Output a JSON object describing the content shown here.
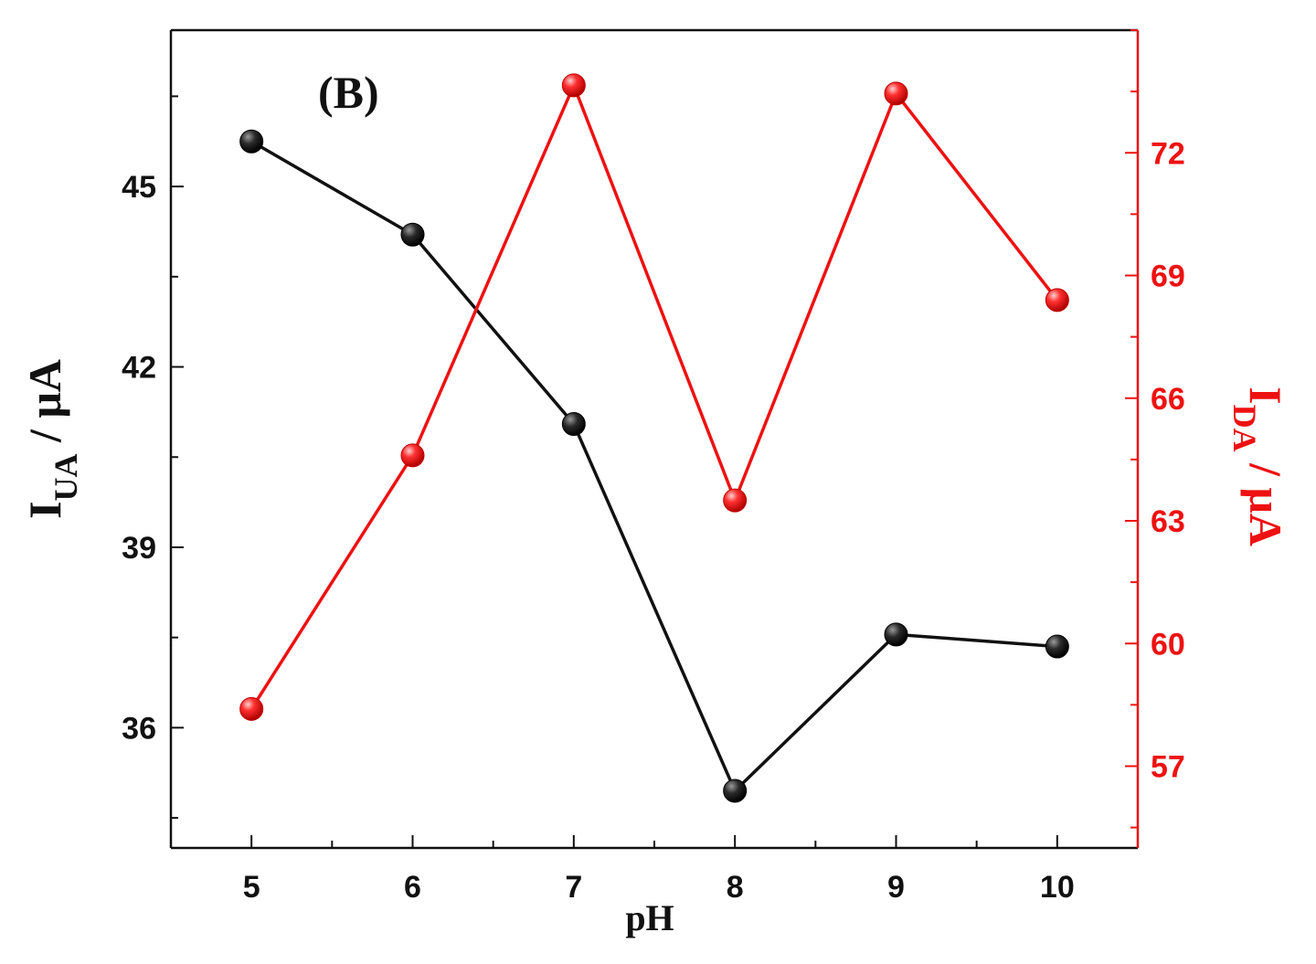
{
  "chart_data": {
    "type": "line",
    "panel_label": "(B)",
    "xlabel": "pH",
    "x": [
      5,
      6,
      7,
      8,
      9,
      10
    ],
    "xlim": [
      4.5,
      10.5
    ],
    "xticks": [
      "5",
      "6",
      "7",
      "8",
      "9",
      "10"
    ],
    "left_axis": {
      "label_main": "I",
      "label_sub": "UA",
      "label_unit": " / μA",
      "ylim": [
        34,
        47.6
      ],
      "ticks": [
        36,
        39,
        42,
        45
      ],
      "tick_labels": [
        "36",
        "39",
        "42",
        "45"
      ],
      "color": "#111111"
    },
    "right_axis": {
      "label_main": "I",
      "label_sub": "DA",
      "label_unit": " / μA",
      "ylim": [
        55,
        75
      ],
      "ticks": [
        57,
        60,
        63,
        66,
        69,
        72
      ],
      "tick_labels": [
        "57",
        "60",
        "63",
        "66",
        "69",
        "72"
      ],
      "color": "#ee1111"
    },
    "series": [
      {
        "axis": "left",
        "color": "#111111",
        "values": [
          45.75,
          44.2,
          41.05,
          34.95,
          37.55,
          37.35
        ]
      },
      {
        "axis": "right",
        "color": "#ee1111",
        "values": [
          58.4,
          64.6,
          73.65,
          63.5,
          73.45,
          68.4
        ]
      }
    ]
  }
}
